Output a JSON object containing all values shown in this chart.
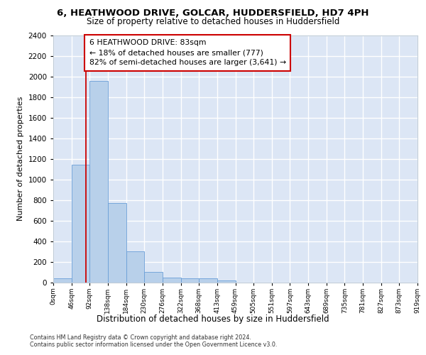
{
  "title1": "6, HEATHWOOD DRIVE, GOLCAR, HUDDERSFIELD, HD7 4PH",
  "title2": "Size of property relative to detached houses in Huddersfield",
  "xlabel": "Distribution of detached houses by size in Huddersfield",
  "ylabel": "Number of detached properties",
  "bin_labels": [
    "0sqm",
    "46sqm",
    "92sqm",
    "138sqm",
    "184sqm",
    "230sqm",
    "276sqm",
    "322sqm",
    "368sqm",
    "413sqm",
    "459sqm",
    "505sqm",
    "551sqm",
    "597sqm",
    "643sqm",
    "689sqm",
    "735sqm",
    "781sqm",
    "827sqm",
    "873sqm",
    "919sqm"
  ],
  "bar_values": [
    35,
    1140,
    1960,
    770,
    300,
    100,
    45,
    40,
    35,
    20,
    0,
    0,
    0,
    0,
    0,
    0,
    0,
    0,
    0,
    0
  ],
  "bar_color": "#b8d0ea",
  "bar_edge_color": "#6a9fd8",
  "property_sqm": 83,
  "annotation_line1": "6 HEATHWOOD DRIVE: 83sqm",
  "annotation_line2": "← 18% of detached houses are smaller (777)",
  "annotation_line3": "82% of semi-detached houses are larger (3,641) →",
  "vline_color": "#cc0000",
  "ylim_max": 2400,
  "yticks": [
    0,
    200,
    400,
    600,
    800,
    1000,
    1200,
    1400,
    1600,
    1800,
    2000,
    2200,
    2400
  ],
  "footer1": "Contains HM Land Registry data © Crown copyright and database right 2024.",
  "footer2": "Contains public sector information licensed under the Open Government Licence v3.0.",
  "fig_bg": "#ffffff",
  "plot_bg": "#dce6f5"
}
